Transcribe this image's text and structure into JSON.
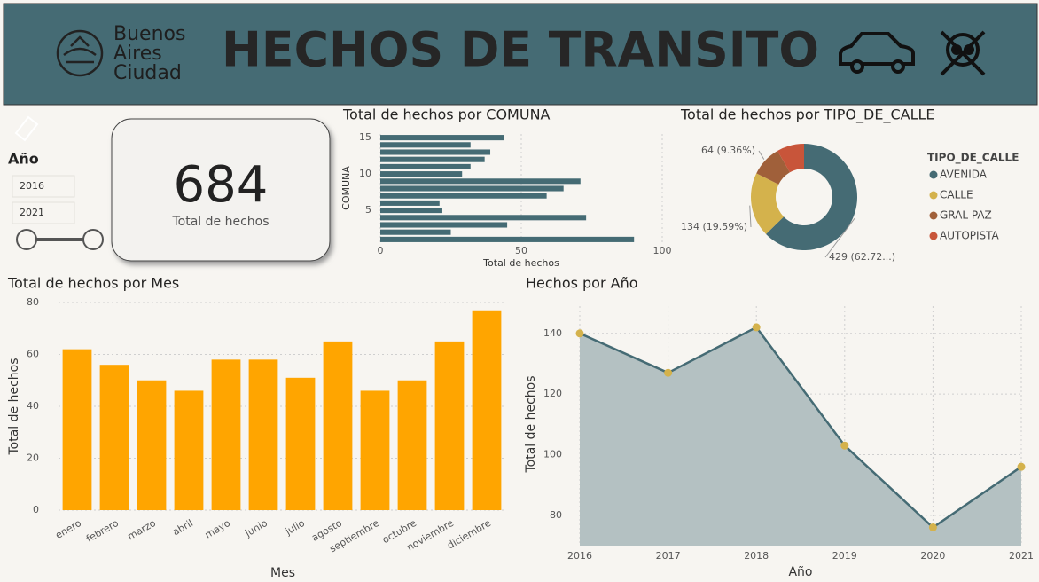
{
  "header": {
    "logo_lines": [
      "Buenos",
      "Aires",
      "Ciudad"
    ],
    "title": "HECHOS DE TRANSITO"
  },
  "slicer": {
    "title": "Año",
    "from": "2016",
    "to": "2021"
  },
  "kpi": {
    "value": 684,
    "label": "Total de hechos"
  },
  "chart_data": [
    {
      "type": "bar",
      "horizontal": true,
      "title": "Total de hechos por COMUNA",
      "y": [
        1,
        2,
        3,
        4,
        5,
        6,
        7,
        8,
        9,
        10,
        11,
        12,
        13,
        14,
        15
      ],
      "values": [
        90,
        25,
        45,
        73,
        22,
        21,
        59,
        65,
        71,
        29,
        32,
        37,
        39,
        32,
        44
      ],
      "color": "#456b74",
      "xlim": [
        0,
        100
      ],
      "xticks": [
        0,
        50,
        100
      ],
      "ylim": [
        0.5,
        15.5
      ],
      "yticks": [
        5,
        10,
        15
      ],
      "xlabel": "Total de hechos",
      "ylabel": "COMUNA",
      "grid": true
    },
    {
      "type": "donut",
      "title": "Total de hechos por TIPO_DE_CALLE",
      "legend_title": "TIPO_DE_CALLE",
      "categories": [
        "AVENIDA",
        "CALLE",
        "GRAL PAZ",
        "AUTOPISTA"
      ],
      "values": [
        429,
        134,
        64,
        57
      ],
      "value_labels": [
        "429 (62.72...)",
        "134 (19.59%)",
        "64 (9.36%)",
        null
      ],
      "colors": [
        "#456b74",
        "#d4b24c",
        "#a0603a",
        "#c8553a"
      ]
    },
    {
      "type": "bar",
      "title": "Total de hechos por Mes",
      "categories": [
        "enero",
        "febrero",
        "marzo",
        "abril",
        "mayo",
        "junio",
        "julio",
        "agosto",
        "septiembre",
        "octubre",
        "noviembre",
        "diciembre"
      ],
      "values": [
        62,
        56,
        50,
        46,
        58,
        58,
        51,
        65,
        46,
        50,
        65,
        77
      ],
      "color": "#ffa500",
      "ylim": [
        0,
        80
      ],
      "yticks": [
        0,
        20,
        40,
        60,
        80
      ],
      "xlabel": "Mes",
      "ylabel": "Total de hechos",
      "grid": true
    },
    {
      "type": "area",
      "title": "Hechos por Año",
      "x": [
        2016,
        2017,
        2018,
        2019,
        2020,
        2021
      ],
      "values": [
        140,
        127,
        142,
        103,
        76,
        96
      ],
      "color": "#456b74",
      "fill": "#b4c1c2",
      "marker_color": "#d4b24c",
      "xlim": [
        2016,
        2021
      ],
      "xticks": [
        2016,
        2017,
        2018,
        2019,
        2020,
        2021
      ],
      "ylim": [
        70,
        149
      ],
      "yticks": [
        80,
        100,
        120,
        140
      ],
      "xlabel": "Año",
      "ylabel": "Total de hechos",
      "grid": true
    }
  ]
}
